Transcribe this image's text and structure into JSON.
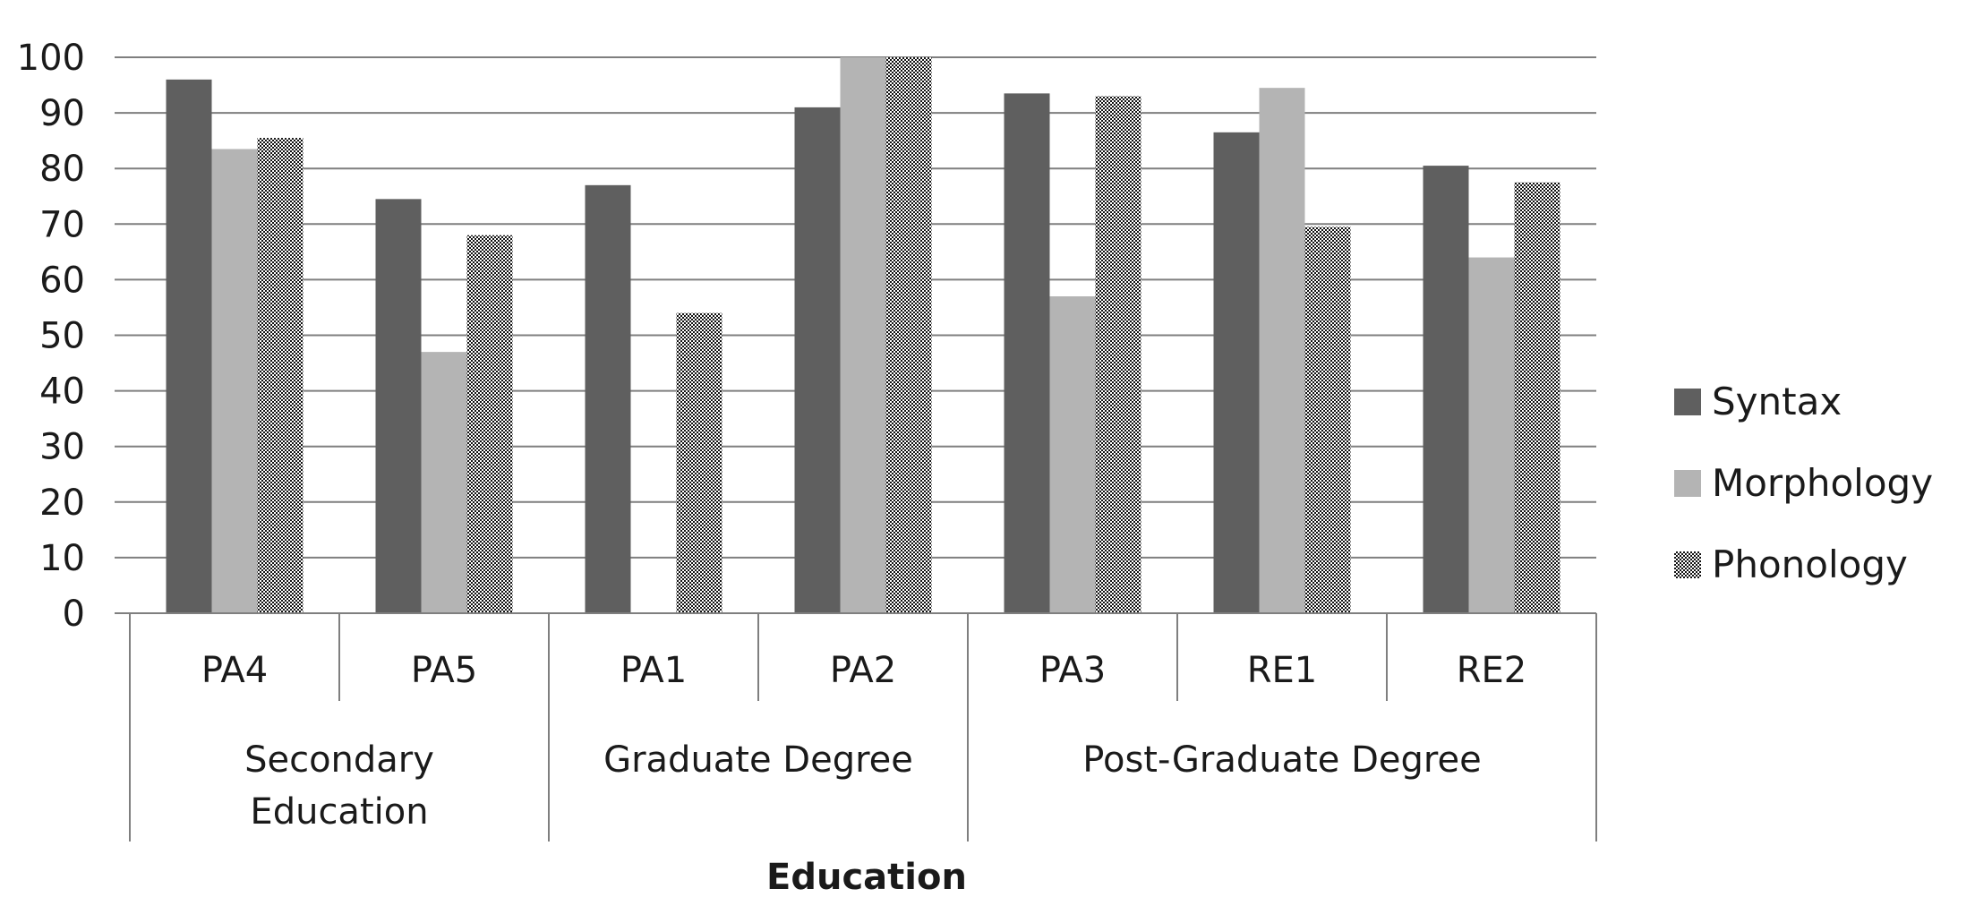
{
  "chart_data": {
    "type": "bar",
    "xlabel": "Education",
    "ylabel": "",
    "ylim": [
      0,
      100
    ],
    "yticks": [
      0,
      10,
      20,
      30,
      40,
      50,
      60,
      70,
      80,
      90,
      100
    ],
    "grid": true,
    "legend_position": "right",
    "categories": [
      "PA4",
      "PA5",
      "PA1",
      "PA2",
      "PA3",
      "RE1",
      "RE2"
    ],
    "groups": [
      {
        "label": "Secondary Education",
        "lines": [
          "Secondary",
          "Education"
        ],
        "categories": [
          "PA4",
          "PA5"
        ]
      },
      {
        "label": "Graduate Degree",
        "lines": [
          "Graduate Degree"
        ],
        "categories": [
          "PA1",
          "PA2"
        ]
      },
      {
        "label": "Post-Graduate Degree",
        "lines": [
          "Post-Graduate Degree"
        ],
        "categories": [
          "PA3",
          "RE1",
          "RE2"
        ]
      }
    ],
    "series": [
      {
        "name": "Syntax",
        "color": "#5f5f5f",
        "pattern": "solid",
        "values": [
          96,
          74.5,
          77,
          91,
          93.5,
          86.5,
          80.5
        ]
      },
      {
        "name": "Morphology",
        "color": "#b4b4b4",
        "pattern": "solid",
        "values": [
          83.5,
          47,
          0,
          100,
          57,
          94.5,
          64
        ]
      },
      {
        "name": "Phonology",
        "color": "#111111",
        "pattern": "checker",
        "values": [
          85.5,
          68,
          54,
          100,
          93,
          69.5,
          77.5
        ]
      }
    ]
  }
}
